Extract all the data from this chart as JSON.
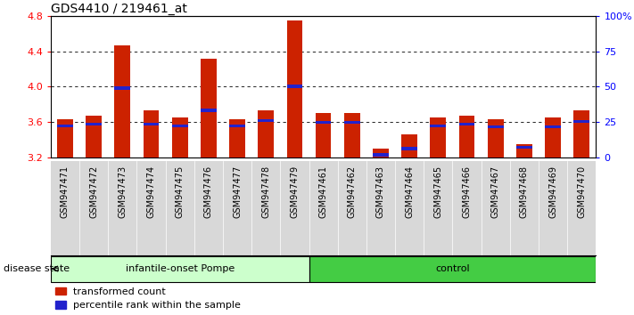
{
  "title": "GDS4410 / 219461_at",
  "samples": [
    "GSM947471",
    "GSM947472",
    "GSM947473",
    "GSM947474",
    "GSM947475",
    "GSM947476",
    "GSM947477",
    "GSM947478",
    "GSM947479",
    "GSM947461",
    "GSM947462",
    "GSM947463",
    "GSM947464",
    "GSM947465",
    "GSM947466",
    "GSM947467",
    "GSM947468",
    "GSM947469",
    "GSM947470"
  ],
  "red_values": [
    3.63,
    3.67,
    4.47,
    3.73,
    3.65,
    4.31,
    3.63,
    3.73,
    4.75,
    3.7,
    3.7,
    3.3,
    3.46,
    3.65,
    3.67,
    3.63,
    3.35,
    3.65,
    3.73
  ],
  "blue_values": [
    3.555,
    3.575,
    3.985,
    3.575,
    3.555,
    3.73,
    3.555,
    3.615,
    4.005,
    3.595,
    3.595,
    3.23,
    3.3,
    3.555,
    3.575,
    3.545,
    3.315,
    3.545,
    3.605
  ],
  "group1_count": 9,
  "group2_count": 10,
  "group1_label": "infantile-onset Pompe",
  "group2_label": "control",
  "disease_state_label": "disease state",
  "ymin": 3.2,
  "ymax": 4.8,
  "yticks": [
    3.2,
    3.6,
    4.0,
    4.4,
    4.8
  ],
  "grid_values": [
    3.6,
    4.0,
    4.4
  ],
  "right_ytick_pcts": [
    0,
    25,
    50,
    75,
    100
  ],
  "right_yticklabels": [
    "0",
    "25",
    "50",
    "75",
    "100%"
  ],
  "bar_color": "#cc2200",
  "blue_color": "#2222cc",
  "group1_bg": "#ccffcc",
  "group2_bg": "#44cc44",
  "tick_bg": "#d8d8d8",
  "legend_items": [
    "transformed count",
    "percentile rank within the sample"
  ]
}
